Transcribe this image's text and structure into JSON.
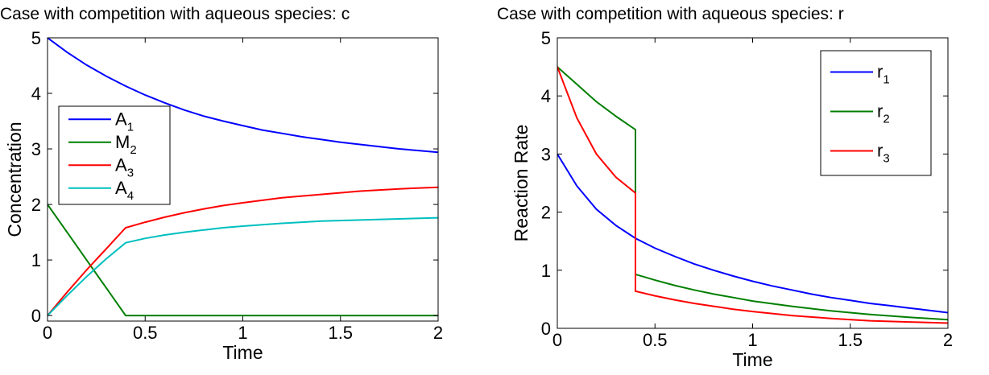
{
  "chart_data": [
    {
      "type": "line",
      "title": "Case with competition with aqueous species: c",
      "xlabel": "Time",
      "ylabel": "Concentration",
      "xlim": [
        0,
        2
      ],
      "ylim": [
        -0.1,
        5
      ],
      "xticks": [
        0,
        0.5,
        1,
        1.5,
        2
      ],
      "xtick_labels": [
        "0",
        "0.5",
        "1",
        "1.5",
        "2"
      ],
      "yticks": [
        0,
        1,
        2,
        3,
        4,
        5
      ],
      "ytick_labels": [
        "0",
        "1",
        "2",
        "3",
        "4",
        "5"
      ],
      "grid": false,
      "legend_position": "left-middle",
      "series": [
        {
          "name": "A",
          "subscript": "1",
          "color": "#0000ff",
          "x": [
            0,
            0.1,
            0.2,
            0.3,
            0.4,
            0.5,
            0.6,
            0.7,
            0.8,
            0.9,
            1.0,
            1.1,
            1.2,
            1.3,
            1.4,
            1.5,
            1.6,
            1.7,
            1.8,
            1.9,
            2.0
          ],
          "y": [
            5.0,
            4.74,
            4.51,
            4.31,
            4.13,
            3.97,
            3.83,
            3.7,
            3.59,
            3.5,
            3.42,
            3.34,
            3.28,
            3.22,
            3.17,
            3.12,
            3.08,
            3.04,
            3.0,
            2.97,
            2.94
          ]
        },
        {
          "name": "M",
          "subscript": "2",
          "color": "#007f00",
          "x": [
            0,
            0.1,
            0.2,
            0.3,
            0.4,
            0.5,
            1.0,
            1.5,
            2.0
          ],
          "y": [
            2.0,
            1.5,
            1.0,
            0.5,
            0.0,
            0.0,
            0.0,
            0.0,
            0.0
          ]
        },
        {
          "name": "A",
          "subscript": "3",
          "color": "#ff0000",
          "x": [
            0,
            0.1,
            0.2,
            0.3,
            0.4,
            0.5,
            0.6,
            0.7,
            0.8,
            0.9,
            1.0,
            1.2,
            1.4,
            1.6,
            1.8,
            2.0
          ],
          "y": [
            0.0,
            0.42,
            0.82,
            1.2,
            1.58,
            1.68,
            1.77,
            1.85,
            1.92,
            1.98,
            2.03,
            2.12,
            2.18,
            2.24,
            2.28,
            2.31
          ]
        },
        {
          "name": "A",
          "subscript": "4",
          "color": "#00bfbf",
          "x": [
            0,
            0.1,
            0.2,
            0.3,
            0.4,
            0.5,
            0.6,
            0.7,
            0.8,
            0.9,
            1.0,
            1.2,
            1.4,
            1.6,
            1.8,
            2.0
          ],
          "y": [
            0.0,
            0.36,
            0.7,
            1.02,
            1.31,
            1.39,
            1.45,
            1.5,
            1.54,
            1.58,
            1.61,
            1.66,
            1.7,
            1.72,
            1.74,
            1.76
          ]
        }
      ]
    },
    {
      "type": "line",
      "title": "Case with competition with aqueous species: r",
      "xlabel": "Time",
      "ylabel": "Reaction Rate",
      "xlim": [
        0,
        2
      ],
      "ylim": [
        0,
        5
      ],
      "xticks": [
        0,
        0.5,
        1,
        1.5,
        2
      ],
      "xtick_labels": [
        "0",
        "0.5",
        "1",
        "1.5",
        "2"
      ],
      "yticks": [
        0,
        1,
        2,
        3,
        4,
        5
      ],
      "ytick_labels": [
        "0",
        "1",
        "2",
        "3",
        "4",
        "5"
      ],
      "grid": false,
      "legend_position": "top-right",
      "series": [
        {
          "name": "r",
          "subscript": "1",
          "color": "#0000ff",
          "x": [
            0,
            0.1,
            0.2,
            0.3,
            0.4,
            0.5,
            0.6,
            0.7,
            0.8,
            0.9,
            1.0,
            1.1,
            1.2,
            1.3,
            1.4,
            1.5,
            1.6,
            1.7,
            1.8,
            1.9,
            2.0
          ],
          "y": [
            3.0,
            2.45,
            2.05,
            1.77,
            1.55,
            1.38,
            1.24,
            1.11,
            1.0,
            0.9,
            0.81,
            0.73,
            0.66,
            0.59,
            0.53,
            0.48,
            0.43,
            0.39,
            0.35,
            0.31,
            0.27
          ]
        },
        {
          "name": "r",
          "subscript": "2",
          "color": "#007f00",
          "x": [
            0,
            0.1,
            0.2,
            0.3,
            0.4,
            0.4,
            0.5,
            0.6,
            0.7,
            0.8,
            0.9,
            1.0,
            1.2,
            1.4,
            1.6,
            1.8,
            2.0
          ],
          "y": [
            4.5,
            4.2,
            3.9,
            3.65,
            3.42,
            0.93,
            0.83,
            0.74,
            0.66,
            0.59,
            0.53,
            0.47,
            0.38,
            0.3,
            0.24,
            0.19,
            0.15
          ]
        },
        {
          "name": "r",
          "subscript": "3",
          "color": "#ff0000",
          "x": [
            0,
            0.1,
            0.2,
            0.3,
            0.4,
            0.4,
            0.5,
            0.6,
            0.7,
            0.8,
            0.9,
            1.0,
            1.2,
            1.4,
            1.6,
            1.8,
            2.0
          ],
          "y": [
            4.5,
            3.62,
            3.0,
            2.6,
            2.33,
            0.64,
            0.56,
            0.49,
            0.43,
            0.38,
            0.33,
            0.29,
            0.22,
            0.17,
            0.13,
            0.11,
            0.09
          ]
        }
      ]
    }
  ]
}
